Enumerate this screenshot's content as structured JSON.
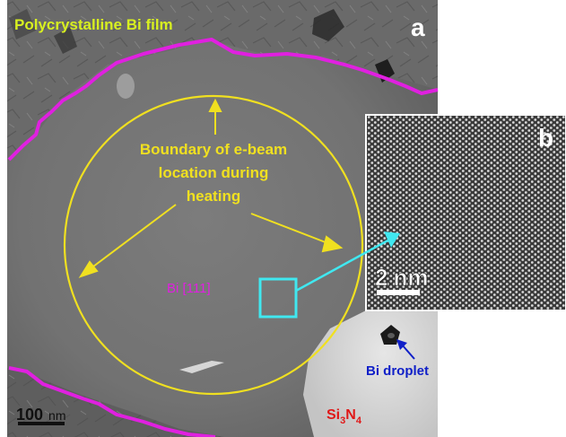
{
  "panel_a": {
    "letter": "a",
    "title": "Polycrystalline Bi film",
    "annotation_lines": [
      "Boundary of e-beam",
      "location during",
      "heating"
    ],
    "orientation_label": "Bi [111]",
    "droplet_label": "Bi droplet",
    "substrate_label": {
      "main": "Si",
      "sub1": "3",
      "mid": "N",
      "sub2": "4"
    },
    "scale_bar": {
      "value": "100",
      "unit": "nm"
    }
  },
  "panel_b": {
    "letter": "b",
    "scale_bar": {
      "value": "2",
      "unit": "nm"
    }
  },
  "colors": {
    "grain_boundary": "#e020e0",
    "ebeam_circle": "#f0e020",
    "annotation_text": "#f0e020",
    "orientation_text": "#e020e0",
    "roi_box": "#40e8f0",
    "droplet_text": "#1020c8",
    "substrate_text": "#e01818",
    "title_text": "#d8f020"
  }
}
